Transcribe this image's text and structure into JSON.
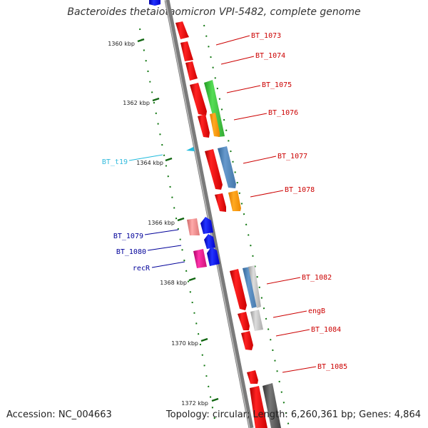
{
  "title": "Bacteroides thetaiotaomicron VPI-5482, complete genome",
  "footer": {
    "accession_label": "Accession: NC_004663",
    "topology_label": "Topology: circular; Length: 6,260,361 bp; Genes: 4,864"
  },
  "scale_labels": [
    "1360 kbp",
    "1362 kbp",
    "1364 kbp",
    "1366 kbp",
    "1368 kbp",
    "1370 kbp",
    "1372 kbp"
  ],
  "gene_labels": [
    {
      "name": "BT_1073",
      "color": "#cc0000"
    },
    {
      "name": "BT_1074",
      "color": "#cc0000"
    },
    {
      "name": "BT_1075",
      "color": "#cc0000"
    },
    {
      "name": "BT_1076",
      "color": "#cc0000"
    },
    {
      "name": "BT_1077",
      "color": "#cc0000"
    },
    {
      "name": "BT_1078",
      "color": "#cc0000"
    },
    {
      "name": "BT_1082",
      "color": "#cc0000"
    },
    {
      "name": "engB",
      "color": "#cc0000"
    },
    {
      "name": "BT_1084",
      "color": "#cc0000"
    },
    {
      "name": "BT_1085",
      "color": "#cc0000"
    },
    {
      "name": "BT_1079",
      "color": "#000099"
    },
    {
      "name": "BT_1080",
      "color": "#000099"
    },
    {
      "name": "recR",
      "color": "#000099"
    },
    {
      "name": "BT_t19",
      "color": "#33bbdd"
    }
  ],
  "colors": {
    "red": "#ff0000",
    "green": "#33cc33",
    "orange": "#ff9900",
    "steelblue": "#4682b4",
    "blue": "#0000ee",
    "pink": "#ee8888",
    "magenta": "#ee1188",
    "gray": "#bbbbbb",
    "darkgray": "#555555",
    "backbone": "#888888",
    "ticks": "#116611"
  }
}
